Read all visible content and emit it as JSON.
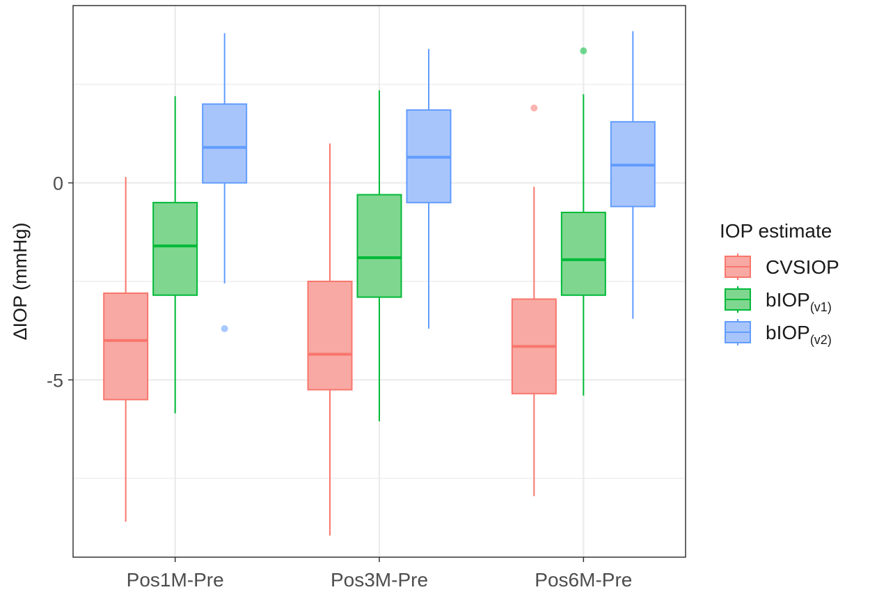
{
  "chart_data": {
    "type": "box",
    "xlabel": "",
    "ylabel": "ΔIOP (mmHg)",
    "categories": [
      "Pos1M-Pre",
      "Pos3M-Pre",
      "Pos6M-Pre"
    ],
    "y_ticks": [
      0,
      -5
    ],
    "y_tick_labels": [
      "0",
      "-5"
    ],
    "ylim": [
      -9.5,
      4.5
    ],
    "grid": true,
    "legend": {
      "title": "IOP estimate",
      "position": "right",
      "entries": [
        {
          "label": "CVSIOP",
          "sub": ""
        },
        {
          "label": "bIOP",
          "sub": "(v1)"
        },
        {
          "label": "bIOP",
          "sub": "(v2)"
        }
      ]
    },
    "series": [
      {
        "name": "CVSIOP",
        "color": "#f8766d",
        "fill": "#f8a9a3",
        "boxes": [
          {
            "category": "Pos1M-Pre",
            "whisker_low": -8.6,
            "q1": -5.5,
            "median": -4.0,
            "q3": -2.8,
            "whisker_high": 0.15,
            "outliers": []
          },
          {
            "category": "Pos3M-Pre",
            "whisker_low": -8.95,
            "q1": -5.25,
            "median": -4.35,
            "q3": -2.5,
            "whisker_high": 1.0,
            "outliers": []
          },
          {
            "category": "Pos6M-Pre",
            "whisker_low": -7.95,
            "q1": -5.35,
            "median": -4.15,
            "q3": -2.95,
            "whisker_high": -0.1,
            "outliers": [
              1.9
            ]
          }
        ]
      },
      {
        "name": "bIOP(v1)",
        "color": "#00ba38",
        "fill": "#7fd68f",
        "boxes": [
          {
            "category": "Pos1M-Pre",
            "whisker_low": -5.85,
            "q1": -2.85,
            "median": -1.6,
            "q3": -0.5,
            "whisker_high": 2.2,
            "outliers": []
          },
          {
            "category": "Pos3M-Pre",
            "whisker_low": -6.05,
            "q1": -2.9,
            "median": -1.9,
            "q3": -0.3,
            "whisker_high": 2.35,
            "outliers": []
          },
          {
            "category": "Pos6M-Pre",
            "whisker_low": -5.4,
            "q1": -2.85,
            "median": -1.95,
            "q3": -0.75,
            "whisker_high": 2.25,
            "outliers": [
              3.35
            ]
          }
        ]
      },
      {
        "name": "bIOP(v2)",
        "color": "#619cff",
        "fill": "#a8c5fb",
        "boxes": [
          {
            "category": "Pos1M-Pre",
            "whisker_low": -2.55,
            "q1": 0.0,
            "median": 0.9,
            "q3": 2.0,
            "whisker_high": 3.8,
            "outliers": [
              -3.7
            ]
          },
          {
            "category": "Pos3M-Pre",
            "whisker_low": -3.7,
            "q1": -0.5,
            "median": 0.65,
            "q3": 1.85,
            "whisker_high": 3.4,
            "outliers": []
          },
          {
            "category": "Pos6M-Pre",
            "whisker_low": -3.45,
            "q1": -0.6,
            "median": 0.45,
            "q3": 1.55,
            "whisker_high": 3.85,
            "outliers": []
          }
        ]
      }
    ]
  }
}
